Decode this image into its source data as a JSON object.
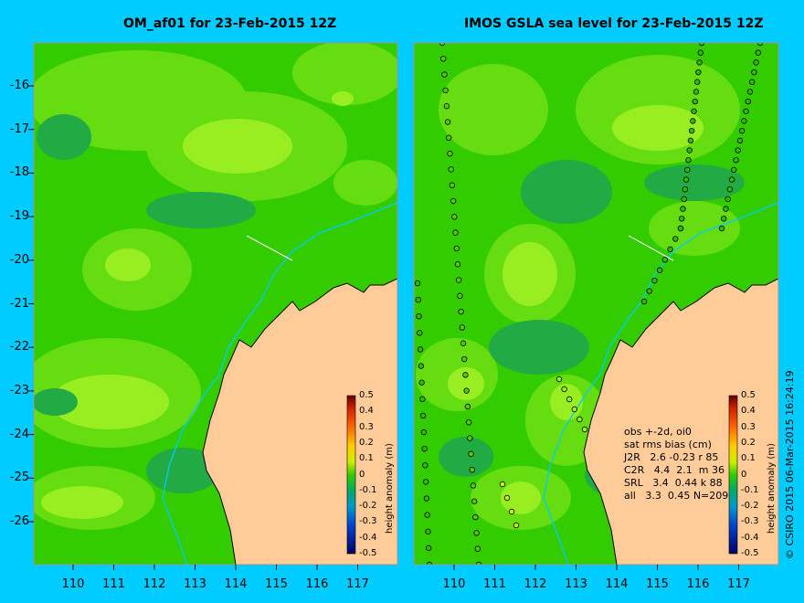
{
  "titles": {
    "left": "OM_af01 for 23-Feb-2015 12Z",
    "right": "IMOS GSLA sea level  for 23-Feb-2015 12Z"
  },
  "axes": {
    "lat_ticks": [
      "-16",
      "-17",
      "-18",
      "-19",
      "-20",
      "-21",
      "-22",
      "-23",
      "-24",
      "-25",
      "-26"
    ],
    "lon_ticks": [
      "110",
      "111",
      "112",
      "113",
      "114",
      "115",
      "116",
      "117"
    ]
  },
  "colorbar": {
    "title": "height anomaly (m)",
    "ticks": [
      "0.5",
      "0.4",
      "0.3",
      "0.2",
      "0.1",
      "0",
      "-0.1",
      "-0.2",
      "-0.3",
      "-0.4",
      "-0.5"
    ]
  },
  "stats": {
    "line1": "obs +-2d, oi0",
    "line2": "sat rms bias (cm)",
    "rows": [
      "J2R   2.6 -0.23 r 85",
      "C2R   4.4  2.1  m 36",
      "SRL   3.4  0.44 k 88",
      "all   3.3  0.45 N=209"
    ]
  },
  "copyright": "© CSIRO 2015   06-Mar-2015 16:24:19",
  "colors": {
    "background": "#00ccff",
    "ocean_base": "#33cc00",
    "ocean_high": "#99ee22",
    "ocean_low": "#22aa44",
    "land": "#ffcc99",
    "coast": "#000000",
    "shelf_contour": "#00ccff"
  }
}
